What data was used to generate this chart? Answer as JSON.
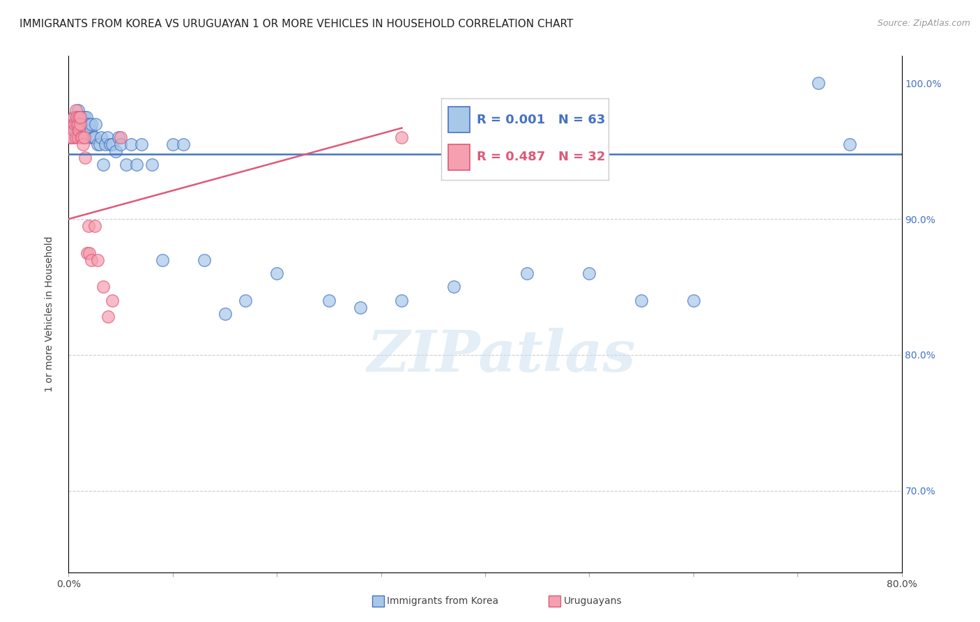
{
  "title": "IMMIGRANTS FROM KOREA VS URUGUAYAN 1 OR MORE VEHICLES IN HOUSEHOLD CORRELATION CHART",
  "source": "Source: ZipAtlas.com",
  "ylabel": "1 or more Vehicles in Household",
  "legend_label1": "Immigrants from Korea",
  "legend_label2": "Uruguayans",
  "R1": "0.001",
  "N1": "63",
  "R2": "0.487",
  "N2": "32",
  "xmin": 0.0,
  "xmax": 0.8,
  "ymin": 0.64,
  "ymax": 1.02,
  "color_blue": "#A8C8E8",
  "color_pink": "#F4A0B0",
  "color_blue_line": "#4472C4",
  "color_pink_line": "#E05878",
  "color_blue_text": "#4472C4",
  "color_pink_text": "#E05878",
  "watermark": "ZIPatlas",
  "blue_x": [
    0.003,
    0.005,
    0.006,
    0.007,
    0.008,
    0.009,
    0.009,
    0.01,
    0.01,
    0.011,
    0.012,
    0.012,
    0.013,
    0.013,
    0.014,
    0.015,
    0.015,
    0.016,
    0.017,
    0.017,
    0.018,
    0.019,
    0.02,
    0.02,
    0.021,
    0.022,
    0.023,
    0.024,
    0.025,
    0.026,
    0.028,
    0.03,
    0.031,
    0.033,
    0.035,
    0.037,
    0.04,
    0.042,
    0.045,
    0.048,
    0.05,
    0.055,
    0.06,
    0.065,
    0.07,
    0.08,
    0.09,
    0.1,
    0.11,
    0.13,
    0.15,
    0.17,
    0.2,
    0.25,
    0.28,
    0.32,
    0.37,
    0.44,
    0.5,
    0.55,
    0.6,
    0.72,
    0.75
  ],
  "blue_y": [
    0.96,
    0.975,
    0.965,
    0.975,
    0.97,
    0.97,
    0.98,
    0.965,
    0.975,
    0.97,
    0.975,
    0.965,
    0.965,
    0.975,
    0.97,
    0.96,
    0.975,
    0.965,
    0.965,
    0.975,
    0.97,
    0.965,
    0.96,
    0.97,
    0.965,
    0.97,
    0.96,
    0.96,
    0.96,
    0.97,
    0.955,
    0.955,
    0.96,
    0.94,
    0.955,
    0.96,
    0.955,
    0.955,
    0.95,
    0.96,
    0.955,
    0.94,
    0.955,
    0.94,
    0.955,
    0.94,
    0.87,
    0.955,
    0.955,
    0.87,
    0.83,
    0.84,
    0.86,
    0.84,
    0.835,
    0.84,
    0.85,
    0.86,
    0.86,
    0.84,
    0.84,
    1.0,
    0.955
  ],
  "pink_x": [
    0.002,
    0.003,
    0.004,
    0.005,
    0.005,
    0.006,
    0.007,
    0.007,
    0.008,
    0.008,
    0.009,
    0.009,
    0.01,
    0.01,
    0.011,
    0.011,
    0.012,
    0.013,
    0.014,
    0.015,
    0.016,
    0.018,
    0.019,
    0.02,
    0.022,
    0.025,
    0.028,
    0.033,
    0.038,
    0.042,
    0.05,
    0.32
  ],
  "pink_y": [
    0.96,
    0.97,
    0.96,
    0.975,
    0.965,
    0.97,
    0.96,
    0.98,
    0.97,
    0.975,
    0.96,
    0.97,
    0.975,
    0.965,
    0.97,
    0.975,
    0.96,
    0.96,
    0.955,
    0.96,
    0.945,
    0.875,
    0.895,
    0.875,
    0.87,
    0.895,
    0.87,
    0.85,
    0.828,
    0.84,
    0.96,
    0.96
  ],
  "blue_trend_x": [
    0.0,
    0.8
  ],
  "blue_trend_y": [
    0.948,
    0.948
  ],
  "pink_trend_x": [
    0.0,
    0.32
  ],
  "pink_trend_y": [
    0.9,
    0.967
  ],
  "xtick_labels": [
    "0.0%",
    "80.0%"
  ],
  "xtick_positions": [
    0.0,
    0.8
  ],
  "ytick_positions": [
    0.7,
    0.8,
    0.9,
    1.0
  ],
  "ytick_labels": [
    "70.0%",
    "80.0%",
    "90.0%",
    "100.0%"
  ],
  "grid_yticks": [
    0.7,
    0.8,
    0.9
  ],
  "title_fontsize": 11,
  "axis_label_fontsize": 10,
  "tick_fontsize": 10
}
